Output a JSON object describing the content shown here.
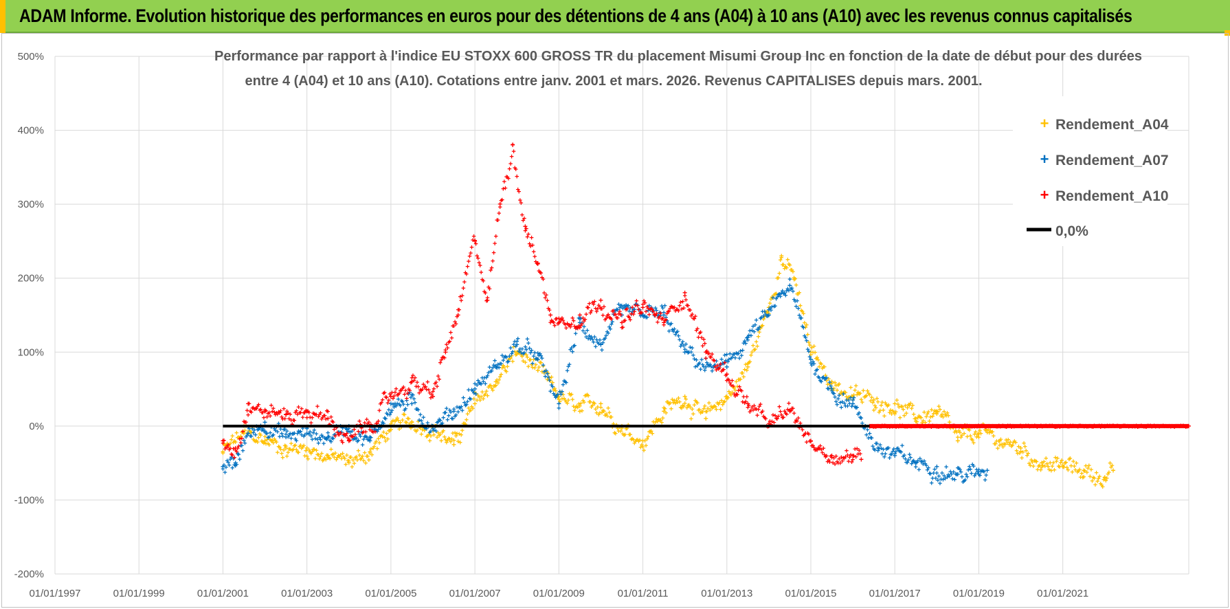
{
  "header": {
    "title": "ADAM Informe. Evolution historique des performances en euros pour des détentions de 4 ans (A04) à 10 ans (A10) avec les revenus connus capitalisés"
  },
  "colors": {
    "banner": "#92d050",
    "a04": "#ffc000",
    "a07": "#0070c0",
    "a10": "#ff0000",
    "zero": "#000000",
    "grid": "#d9d9d9"
  },
  "chart_data": {
    "type": "scatter",
    "title_line1": "Performance par rapport à l'indice EU STOXX 600 GROSS TR  du placement Misumi Group Inc en fonction de la date de début pour des durées",
    "title_line2": "entre 4 (A04) et 10 ans (A10). Cotations entre janv. 2001 et mars. 2026. Revenus CAPITALISES depuis mars. 2001.",
    "xlabel": "",
    "ylabel": "",
    "xlim": [
      1997.0,
      2024.0
    ],
    "ylim": [
      -200,
      500
    ],
    "y_ticks": [
      -200,
      -100,
      0,
      100,
      200,
      300,
      400,
      500
    ],
    "y_tick_labels": [
      "-200%",
      "-100%",
      "0%",
      "100%",
      "200%",
      "300%",
      "400%",
      "500%"
    ],
    "x_ticks": [
      1997,
      1999,
      2001,
      2003,
      2005,
      2007,
      2009,
      2011,
      2013,
      2015,
      2017,
      2019,
      2021
    ],
    "x_tick_labels": [
      "01/01/1997",
      "01/01/1999",
      "01/01/2001",
      "01/01/2003",
      "01/01/2005",
      "01/01/2007",
      "01/01/2009",
      "01/01/2011",
      "01/01/2013",
      "01/01/2015",
      "01/01/2017",
      "01/01/2019",
      "01/01/2021"
    ],
    "grid": true,
    "legend_position": "top-right",
    "series": [
      {
        "name": "Rendement_A04",
        "marker": "+",
        "x": [
          2001.0,
          2001.5,
          2002.0,
          2002.5,
          2003.0,
          2003.5,
          2004.0,
          2004.5,
          2005.0,
          2005.5,
          2006.0,
          2006.5,
          2007.0,
          2007.5,
          2008.0,
          2008.5,
          2009.0,
          2009.5,
          2010.0,
          2010.5,
          2011.0,
          2011.5,
          2012.0,
          2012.5,
          2013.0,
          2013.5,
          2014.0,
          2014.3,
          2014.6,
          2015.0,
          2015.5,
          2016.0,
          2016.5,
          2017.0,
          2017.5,
          2018.0,
          2018.5,
          2019.0,
          2019.5,
          2020.0,
          2020.5,
          2021.0,
          2021.5,
          2022.0,
          2022.2
        ],
        "y": [
          -35,
          -10,
          -20,
          -30,
          -30,
          -40,
          -50,
          -35,
          -5,
          5,
          0,
          -25,
          30,
          60,
          100,
          75,
          40,
          20,
          30,
          0,
          -20,
          20,
          40,
          10,
          40,
          80,
          160,
          230,
          200,
          100,
          60,
          40,
          35,
          30,
          10,
          20,
          -20,
          -10,
          -20,
          -30,
          -50,
          -55,
          -60,
          -70,
          -60
        ]
      },
      {
        "name": "Rendement_A07",
        "marker": "+",
        "x": [
          2001.0,
          2001.3,
          2001.6,
          2002.0,
          2002.5,
          2003.0,
          2003.5,
          2004.0,
          2004.5,
          2005.0,
          2005.5,
          2006.0,
          2006.5,
          2007.0,
          2007.5,
          2008.0,
          2008.5,
          2009.0,
          2009.5,
          2010.0,
          2010.5,
          2011.0,
          2011.5,
          2012.0,
          2012.5,
          2013.0,
          2013.5,
          2014.0,
          2014.5,
          2015.0,
          2015.5,
          2016.0,
          2016.3,
          2016.6,
          2017.0,
          2017.5,
          2018.0,
          2018.5,
          2019.0,
          2019.2
        ],
        "y": [
          -55,
          -50,
          -10,
          5,
          -15,
          -10,
          -15,
          0,
          -20,
          30,
          30,
          0,
          20,
          50,
          80,
          110,
          90,
          30,
          140,
          110,
          150,
          150,
          150,
          100,
          80,
          80,
          120,
          150,
          190,
          90,
          50,
          30,
          0,
          -30,
          -40,
          -50,
          -55,
          -65,
          -65,
          -60
        ]
      },
      {
        "name": "Rendement_A10",
        "marker": "+",
        "x": [
          2001.0,
          2001.3,
          2001.6,
          2002.0,
          2002.5,
          2003.0,
          2003.5,
          2004.0,
          2004.5,
          2005.0,
          2005.5,
          2006.0,
          2006.3,
          2006.6,
          2007.0,
          2007.3,
          2007.6,
          2007.9,
          2008.2,
          2008.5,
          2008.8,
          2009.0,
          2009.5,
          2010.0,
          2010.5,
          2011.0,
          2011.5,
          2012.0,
          2012.5,
          2013.0,
          2013.5,
          2014.0,
          2014.5,
          2015.0,
          2015.5,
          2016.0,
          2016.2
        ],
        "y": [
          -20,
          -30,
          30,
          20,
          15,
          20,
          10,
          -20,
          0,
          40,
          60,
          40,
          100,
          150,
          250,
          170,
          300,
          380,
          270,
          220,
          150,
          140,
          150,
          170,
          140,
          160,
          140,
          180,
          100,
          70,
          30,
          0,
          20,
          -20,
          -40,
          -40,
          -45
        ]
      },
      {
        "name": "Rendement_A10",
        "marker": "+",
        "x": [
          2016.4,
          2017.0,
          2018.0,
          2019.0,
          2020.0,
          2021.0,
          2022.0,
          2023.0,
          2024.0
        ],
        "y": [
          0,
          0,
          0,
          0,
          0,
          0,
          0,
          0,
          0
        ]
      }
    ],
    "reference_line": {
      "name": "0,0%",
      "x": [
        2001.0,
        2024.0
      ],
      "y": [
        0,
        0
      ]
    },
    "legend": [
      "Rendement_A04",
      "Rendement_A07",
      "Rendement_A10",
      "0,0%"
    ]
  }
}
